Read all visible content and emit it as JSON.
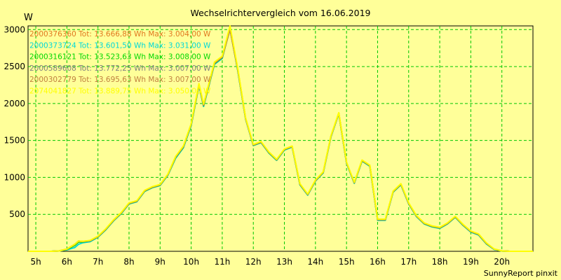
{
  "chart_data": {
    "type": "line",
    "title": "Wechselrichtervergleich vom 16.06.2019",
    "ylabel": "W",
    "xlabel": "",
    "footer": "SunnyReport pinxit",
    "xlim": [
      4.75,
      21.0
    ],
    "ylim": [
      0,
      3050
    ],
    "grid": true,
    "legend_position": "top-left",
    "x_ticks": [
      5,
      6,
      7,
      8,
      9,
      10,
      11,
      12,
      13,
      14,
      15,
      16,
      17,
      18,
      19,
      20
    ],
    "x_tick_labels": [
      "5h",
      "6h",
      "7h",
      "8h",
      "9h",
      "10h",
      "11h",
      "12h",
      "13h",
      "14h",
      "15h",
      "16h",
      "17h",
      "18h",
      "19h",
      "20h"
    ],
    "y_ticks": [
      500,
      1000,
      1500,
      2000,
      2500,
      3000
    ],
    "y_tick_labels": [
      "500",
      "1000",
      "1500",
      "2000",
      "2500",
      "3000"
    ],
    "x": [
      4.75,
      5.0,
      5.25,
      5.5,
      5.75,
      6.0,
      6.25,
      6.375,
      6.5,
      6.75,
      7.0,
      7.25,
      7.5,
      7.75,
      8.0,
      8.25,
      8.5,
      8.75,
      9.0,
      9.25,
      9.5,
      9.75,
      10.0,
      10.25,
      10.4,
      10.75,
      11.0,
      11.25,
      11.5,
      11.75,
      12.0,
      12.25,
      12.5,
      12.75,
      13.0,
      13.25,
      13.5,
      13.75,
      14.0,
      14.25,
      14.5,
      14.75,
      15.0,
      15.25,
      15.5,
      15.75,
      16.0,
      16.25,
      16.5,
      16.75,
      17.0,
      17.25,
      17.5,
      17.75,
      18.0,
      18.25,
      18.5,
      18.75,
      19.0,
      19.25,
      19.5,
      19.75,
      20.0,
      20.25,
      20.5,
      20.75,
      21.0
    ],
    "series": [
      {
        "name": "2000376360",
        "label": "2000376360 Tot: 13.666,88 Wh Max: 3.004,00 W",
        "color": "#e07820",
        "values": [
          0,
          0,
          0,
          0,
          5,
          30,
          95,
          140,
          135,
          145,
          200,
          300,
          420,
          520,
          650,
          680,
          820,
          870,
          900,
          1040,
          1280,
          1420,
          1720,
          2260,
          1980,
          2550,
          2630,
          3004,
          2460,
          1800,
          1440,
          1480,
          1340,
          1240,
          1380,
          1420,
          910,
          770,
          960,
          1070,
          1560,
          1870,
          1200,
          930,
          1230,
          1160,
          430,
          430,
          810,
          910,
          650,
          480,
          380,
          340,
          320,
          380,
          470,
          360,
          270,
          230,
          110,
          30,
          5,
          0,
          0,
          0,
          0
        ]
      },
      {
        "name": "2000373724",
        "label": "2000373724 Tot: 13.601,50 Wh Max: 3.031,00 W",
        "color": "#00d8d8",
        "values": [
          0,
          0,
          0,
          0,
          5,
          20,
          50,
          95,
          115,
          130,
          190,
          290,
          410,
          510,
          640,
          670,
          810,
          860,
          890,
          1030,
          1260,
          1400,
          1700,
          2240,
          1960,
          2530,
          2610,
          3031,
          2440,
          1790,
          1430,
          1470,
          1330,
          1230,
          1370,
          1410,
          900,
          760,
          950,
          1060,
          1550,
          1860,
          1190,
          920,
          1220,
          1150,
          420,
          420,
          800,
          900,
          640,
          470,
          370,
          330,
          310,
          370,
          460,
          350,
          260,
          220,
          100,
          25,
          4,
          0,
          0,
          0,
          0
        ]
      },
      {
        "name": "2000316121",
        "label": "2000316121 Tot: 13.523,63 Wh Max: 3.008,00 W",
        "color": "#00d800",
        "values": [
          0,
          0,
          0,
          0,
          5,
          25,
          80,
          125,
          125,
          140,
          195,
          295,
          415,
          515,
          645,
          675,
          815,
          865,
          895,
          1035,
          1270,
          1410,
          1710,
          2250,
          1970,
          2540,
          2620,
          3008,
          2450,
          1795,
          1435,
          1475,
          1335,
          1235,
          1375,
          1415,
          905,
          765,
          955,
          1065,
          1555,
          1865,
          1195,
          925,
          1225,
          1155,
          425,
          425,
          805,
          905,
          645,
          475,
          375,
          335,
          315,
          375,
          465,
          355,
          265,
          225,
          105,
          28,
          4,
          0,
          0,
          0,
          0
        ]
      },
      {
        "name": "2000589608",
        "label": "2000589608 Tot: 13.772,25 Wh Max: 3.007,00 W",
        "color": "#808080",
        "values": [
          0,
          0,
          0,
          0,
          5,
          28,
          90,
          135,
          130,
          142,
          198,
          298,
          418,
          518,
          648,
          678,
          818,
          868,
          898,
          1038,
          1275,
          1415,
          1715,
          2255,
          1975,
          2545,
          2625,
          3007,
          2455,
          1798,
          1438,
          1478,
          1338,
          1238,
          1378,
          1418,
          908,
          768,
          958,
          1068,
          1558,
          1868,
          1198,
          928,
          1228,
          1158,
          428,
          428,
          808,
          908,
          648,
          478,
          378,
          338,
          318,
          378,
          468,
          358,
          268,
          228,
          108,
          29,
          5,
          0,
          0,
          0,
          0
        ]
      },
      {
        "name": "2000302779",
        "label": "2000302779 Tot: 13.695,63 Wh Max: 3.007,00 W",
        "color": "#c08040",
        "values": [
          0,
          0,
          0,
          0,
          5,
          30,
          92,
          138,
          133,
          143,
          199,
          299,
          419,
          519,
          649,
          679,
          819,
          869,
          899,
          1039,
          1278,
          1418,
          1718,
          2258,
          1978,
          2548,
          2628,
          3007,
          2458,
          1799,
          1439,
          1479,
          1339,
          1239,
          1379,
          1419,
          909,
          769,
          959,
          1069,
          1559,
          1869,
          1199,
          929,
          1229,
          1159,
          429,
          429,
          809,
          909,
          649,
          479,
          379,
          339,
          319,
          379,
          469,
          359,
          269,
          229,
          109,
          30,
          5,
          0,
          0,
          0,
          0
        ]
      },
      {
        "name": "2074041827",
        "label": "2074041827 Tot: 13.889,75 Wh Max: 3.050,00 W",
        "color": "#ffff00",
        "values": [
          0,
          0,
          0,
          0,
          5,
          30,
          95,
          140,
          135,
          148,
          205,
          305,
          425,
          525,
          655,
          685,
          825,
          875,
          905,
          1045,
          1285,
          1425,
          1725,
          2270,
          1990,
          2560,
          2640,
          3050,
          2470,
          1805,
          1445,
          1485,
          1345,
          1245,
          1385,
          1425,
          915,
          775,
          965,
          1075,
          1565,
          1875,
          1205,
          935,
          1235,
          1165,
          435,
          435,
          815,
          915,
          655,
          485,
          385,
          345,
          325,
          385,
          475,
          365,
          275,
          235,
          115,
          32,
          5,
          0,
          0,
          0,
          0
        ]
      }
    ]
  }
}
